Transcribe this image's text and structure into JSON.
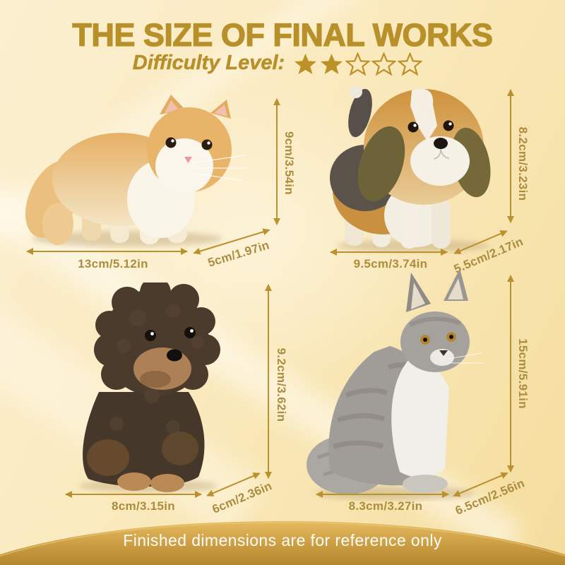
{
  "header": {
    "title": "THE SIZE OF FINAL WORKS",
    "difficulty_label": "Difficulty Level:",
    "difficulty": {
      "filled": 2,
      "total": 5
    }
  },
  "figures": [
    {
      "animal": "orange and white cat",
      "height": "9cm/3.54in",
      "length": "13cm/5.12in",
      "depth": "5cm/1.97in"
    },
    {
      "animal": "beagle puppy",
      "height": "8.2cm/3.23in",
      "length": "9.5cm/3.74in",
      "depth": "5.5cm/2.17in"
    },
    {
      "animal": "brown poodle puppy",
      "height": "9.2cm/3.62in",
      "length": "8cm/3.15in",
      "depth": "6cm/2.36in"
    },
    {
      "animal": "grey tabby cat",
      "height": "15cm/5.91in",
      "length": "8.3cm/3.27in",
      "depth": "6.5cm/2.56in"
    }
  ],
  "footer": {
    "note": "Finished dimensions are for reference only"
  },
  "colors": {
    "title": "#B8902A",
    "dimension_text": "#AC8C3E",
    "arrow": "#B9912F",
    "star": "#BC9226",
    "footer_top": "#E5B95F",
    "footer_bottom": "#B5862B",
    "footer_text": "#FDFCF8"
  }
}
